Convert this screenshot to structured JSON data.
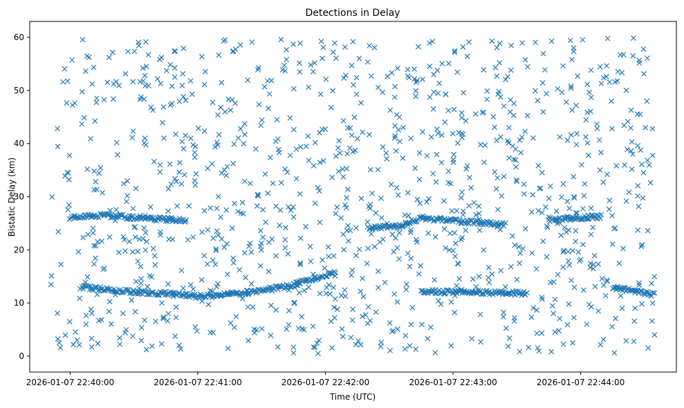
{
  "chart_data": {
    "type": "scatter",
    "title": "Detections in Delay",
    "xlabel": "Time (UTC)",
    "ylabel": "Bistatic Delay (km)",
    "xlim": [
      "2026-01-07 22:39:41",
      "2026-01-07 22:44:45"
    ],
    "ylim": [
      -3,
      63
    ],
    "xticks": [
      "2026-01-07 22:40:00",
      "2026-01-07 22:41:00",
      "2026-01-07 22:42:00",
      "2026-01-07 22:43:00",
      "2026-01-07 22:44:00"
    ],
    "yticks": [
      0,
      10,
      20,
      30,
      40,
      50,
      60
    ],
    "marker": "x",
    "color": "#1f77b4",
    "grid": false,
    "legend": "none",
    "x_range": [
      "2026-01-07 22:39:50",
      "2026-01-07 22:44:35"
    ],
    "tracks": [
      {
        "x": "2026-01-07 22:40:00",
        "y": 26.0
      },
      {
        "x": "2026-01-07 22:40:15",
        "y": 26.5
      },
      {
        "x": "2026-01-07 22:40:30",
        "y": 26.1
      },
      {
        "x": "2026-01-07 22:40:45",
        "y": 25.7
      },
      {
        "x": "2026-01-07 22:40:55",
        "y": 25.6
      },
      {
        "x": "2026-01-07 22:40:05",
        "y": 13.0
      },
      {
        "x": "2026-01-07 22:40:20",
        "y": 12.4
      },
      {
        "x": "2026-01-07 22:40:35",
        "y": 11.9
      },
      {
        "x": "2026-01-07 22:40:50",
        "y": 11.7
      },
      {
        "x": "2026-01-07 22:41:00",
        "y": 11.2
      },
      {
        "x": "2026-01-07 22:41:20",
        "y": 11.8
      },
      {
        "x": "2026-01-07 22:41:40",
        "y": 13.0
      },
      {
        "x": "2026-01-07 22:42:00",
        "y": 15.0
      },
      {
        "x": "2026-01-07 22:42:05",
        "y": 16.0
      },
      {
        "x": "2026-01-07 22:42:20",
        "y": 24.0
      },
      {
        "x": "2026-01-07 22:42:35",
        "y": 24.5
      },
      {
        "x": "2026-01-07 22:42:45",
        "y": 26.0
      },
      {
        "x": "2026-01-07 22:43:00",
        "y": 25.5
      },
      {
        "x": "2026-01-07 22:43:15",
        "y": 25.0
      },
      {
        "x": "2026-01-07 22:43:25",
        "y": 24.8
      },
      {
        "x": "2026-01-07 22:42:45",
        "y": 12.2
      },
      {
        "x": "2026-01-07 22:43:05",
        "y": 12.0
      },
      {
        "x": "2026-01-07 22:43:15",
        "y": 12.0
      },
      {
        "x": "2026-01-07 22:43:35",
        "y": 11.8
      },
      {
        "x": "2026-01-07 22:43:45",
        "y": 25.6
      },
      {
        "x": "2026-01-07 22:44:00",
        "y": 26.0
      },
      {
        "x": "2026-01-07 22:44:10",
        "y": 26.3
      },
      {
        "x": "2026-01-07 22:44:15",
        "y": 13.0
      },
      {
        "x": "2026-01-07 22:44:35",
        "y": 11.5
      }
    ]
  }
}
